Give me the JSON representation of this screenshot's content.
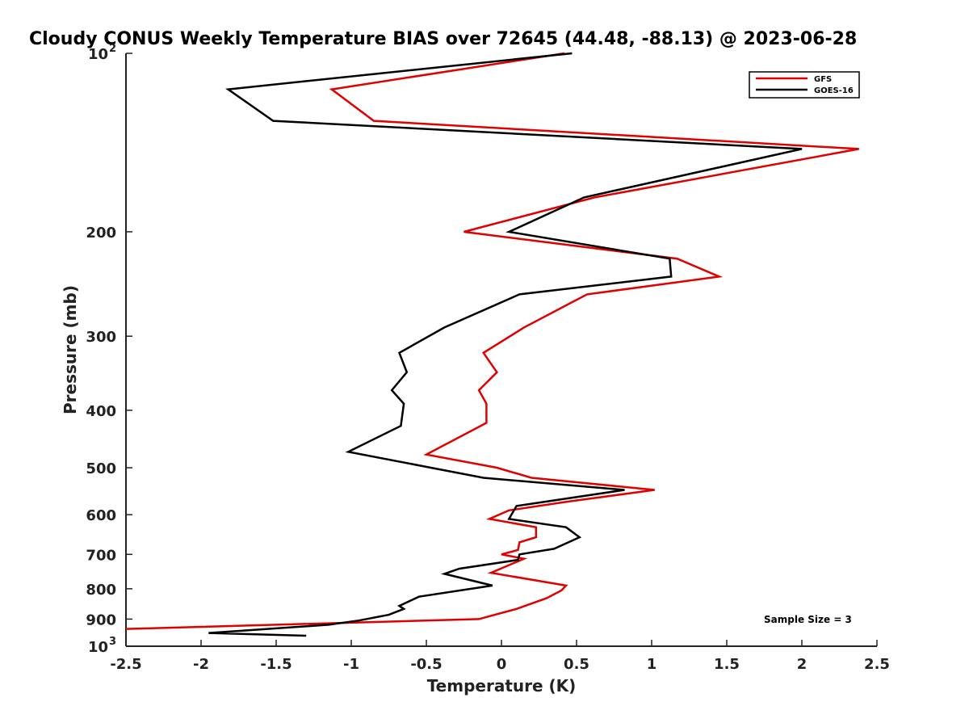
{
  "chart_data": {
    "type": "line",
    "title": "Cloudy CONUS Weekly Temperature BIAS over 72645 (44.48, -88.13) @ 2023-06-28",
    "xlabel": "Temperature (K)",
    "ylabel": "Pressure (mb)",
    "xlim": [
      -2.5,
      2.5
    ],
    "ylim": [
      100,
      1000
    ],
    "y_scale": "log",
    "y_reversed": true,
    "grid": false,
    "legend_position": "top-right",
    "x_ticks": [
      "-2.5",
      "-2",
      "-1.5",
      "-1",
      "-0.5",
      "0",
      "0.5",
      "1",
      "1.5",
      "2",
      "2.5"
    ],
    "y_ticks": [
      {
        "value": 100,
        "base": "10",
        "sup": "2"
      },
      {
        "value": 200,
        "label": "200"
      },
      {
        "value": 300,
        "label": "300"
      },
      {
        "value": 400,
        "label": "400"
      },
      {
        "value": 500,
        "label": "500"
      },
      {
        "value": 600,
        "label": "600"
      },
      {
        "value": 700,
        "label": "700"
      },
      {
        "value": 800,
        "label": "800"
      },
      {
        "value": 900,
        "label": "900"
      },
      {
        "value": 1000,
        "base": "10",
        "sup": "3"
      }
    ],
    "annotation": "Sample Size = 3",
    "series": [
      {
        "name": "GFS",
        "color": "#e00000",
        "points": [
          [
            0.42,
            100
          ],
          [
            -1.13,
            115
          ],
          [
            -0.85,
            130
          ],
          [
            2.38,
            145
          ],
          [
            0.62,
            175
          ],
          [
            -0.25,
            200
          ],
          [
            1.17,
            222
          ],
          [
            1.45,
            238
          ],
          [
            0.57,
            255
          ],
          [
            0.15,
            290
          ],
          [
            -0.12,
            320
          ],
          [
            -0.03,
            345
          ],
          [
            -0.15,
            370
          ],
          [
            -0.1,
            390
          ],
          [
            -0.1,
            420
          ],
          [
            -0.5,
            475
          ],
          [
            -0.03,
            500
          ],
          [
            0.2,
            520
          ],
          [
            1.02,
            545
          ],
          [
            0.45,
            570
          ],
          [
            0.05,
            590
          ],
          [
            -0.08,
            610
          ],
          [
            0.23,
            630
          ],
          [
            0.23,
            655
          ],
          [
            0.12,
            668
          ],
          [
            0.11,
            688
          ],
          [
            0.0,
            700
          ],
          [
            0.15,
            712
          ],
          [
            -0.07,
            752
          ],
          [
            0.43,
            790
          ],
          [
            0.4,
            805
          ],
          [
            0.3,
            830
          ],
          [
            0.1,
            865
          ],
          [
            -0.15,
            900
          ],
          [
            -2.5,
            935
          ]
        ]
      },
      {
        "name": "GOES-16",
        "color": "#000000",
        "points": [
          [
            0.47,
            100
          ],
          [
            -1.82,
            115
          ],
          [
            -1.52,
            130
          ],
          [
            2.0,
            145
          ],
          [
            0.55,
            175
          ],
          [
            0.05,
            200
          ],
          [
            1.12,
            222
          ],
          [
            1.13,
            238
          ],
          [
            0.12,
            255
          ],
          [
            -0.38,
            290
          ],
          [
            -0.68,
            320
          ],
          [
            -0.63,
            345
          ],
          [
            -0.73,
            370
          ],
          [
            -0.65,
            390
          ],
          [
            -0.67,
            425
          ],
          [
            -1.02,
            470
          ],
          [
            -0.47,
            500
          ],
          [
            -0.12,
            520
          ],
          [
            0.82,
            545
          ],
          [
            0.1,
            580
          ],
          [
            0.05,
            610
          ],
          [
            0.43,
            630
          ],
          [
            0.52,
            655
          ],
          [
            0.35,
            685
          ],
          [
            0.12,
            700
          ],
          [
            0.11,
            715
          ],
          [
            -0.28,
            740
          ],
          [
            -0.38,
            755
          ],
          [
            -0.06,
            790
          ],
          [
            -0.55,
            825
          ],
          [
            -0.68,
            855
          ],
          [
            -0.65,
            865
          ],
          [
            -0.75,
            885
          ],
          [
            -0.95,
            905
          ],
          [
            -1.15,
            920
          ],
          [
            -1.95,
            950
          ],
          [
            -1.3,
            960
          ]
        ]
      }
    ]
  }
}
